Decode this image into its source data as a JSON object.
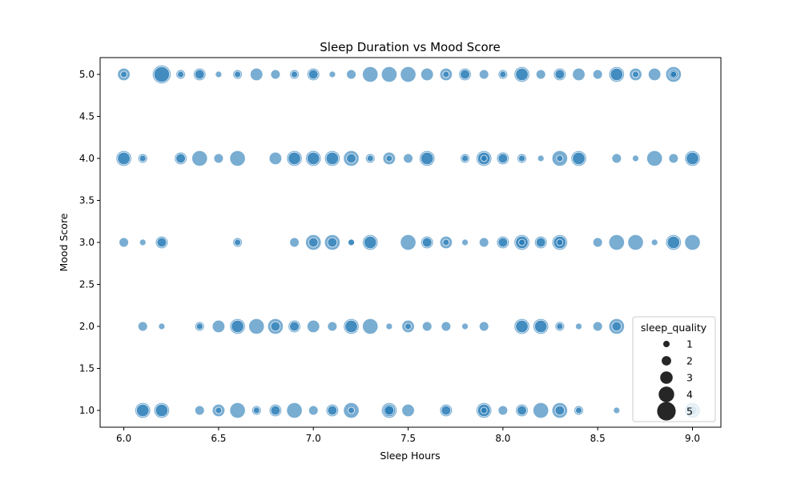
{
  "chart_data": {
    "type": "scatter",
    "title": "Sleep Duration vs Mood Score",
    "xlabel": "Sleep Hours",
    "ylabel": "Mood Score",
    "xlim": [
      5.875,
      9.15
    ],
    "ylim": [
      0.8,
      5.2
    ],
    "xticks": [
      "6.0",
      "6.5",
      "7.0",
      "7.5",
      "8.0",
      "8.5",
      "9.0"
    ],
    "yticks": [
      "1.0",
      "1.5",
      "2.0",
      "2.5",
      "3.0",
      "3.5",
      "4.0",
      "4.5",
      "5.0"
    ],
    "grid": false,
    "point_color": "#1f77b4",
    "point_alpha": 0.6,
    "size_variable": "sleep_quality",
    "legend": {
      "title": "sleep_quality",
      "placement": "lower-right",
      "entries": [
        "1",
        "2",
        "3",
        "4",
        "5"
      ]
    },
    "points": [
      {
        "x": 6.0,
        "y": 5,
        "q": 3
      },
      {
        "x": 6.0,
        "y": 5,
        "q": 1
      },
      {
        "x": 6.2,
        "y": 5,
        "q": 5
      },
      {
        "x": 6.2,
        "y": 5,
        "q": 4
      },
      {
        "x": 6.3,
        "y": 5,
        "q": 2
      },
      {
        "x": 6.3,
        "y": 5,
        "q": 1
      },
      {
        "x": 6.4,
        "y": 5,
        "q": 3
      },
      {
        "x": 6.4,
        "y": 5,
        "q": 2
      },
      {
        "x": 6.5,
        "y": 5,
        "q": 1
      },
      {
        "x": 6.6,
        "y": 5,
        "q": 2
      },
      {
        "x": 6.6,
        "y": 5,
        "q": 1
      },
      {
        "x": 6.7,
        "y": 5,
        "q": 3
      },
      {
        "x": 6.8,
        "y": 5,
        "q": 2
      },
      {
        "x": 6.9,
        "y": 5,
        "q": 2
      },
      {
        "x": 6.9,
        "y": 5,
        "q": 1
      },
      {
        "x": 7.0,
        "y": 5,
        "q": 3
      },
      {
        "x": 7.0,
        "y": 5,
        "q": 2
      },
      {
        "x": 7.1,
        "y": 5,
        "q": 1
      },
      {
        "x": 7.2,
        "y": 5,
        "q": 2
      },
      {
        "x": 7.3,
        "y": 5,
        "q": 4
      },
      {
        "x": 7.4,
        "y": 5,
        "q": 4
      },
      {
        "x": 7.5,
        "y": 5,
        "q": 4
      },
      {
        "x": 7.6,
        "y": 5,
        "q": 3
      },
      {
        "x": 7.7,
        "y": 5,
        "q": 3
      },
      {
        "x": 7.7,
        "y": 5,
        "q": 1
      },
      {
        "x": 7.8,
        "y": 5,
        "q": 3
      },
      {
        "x": 7.8,
        "y": 5,
        "q": 2
      },
      {
        "x": 7.9,
        "y": 5,
        "q": 2
      },
      {
        "x": 8.0,
        "y": 5,
        "q": 2
      },
      {
        "x": 8.0,
        "y": 5,
        "q": 1
      },
      {
        "x": 8.1,
        "y": 5,
        "q": 4
      },
      {
        "x": 8.1,
        "y": 5,
        "q": 3
      },
      {
        "x": 8.2,
        "y": 5,
        "q": 2
      },
      {
        "x": 8.3,
        "y": 5,
        "q": 3
      },
      {
        "x": 8.3,
        "y": 5,
        "q": 2
      },
      {
        "x": 8.4,
        "y": 5,
        "q": 3
      },
      {
        "x": 8.5,
        "y": 5,
        "q": 2
      },
      {
        "x": 8.6,
        "y": 5,
        "q": 4
      },
      {
        "x": 8.6,
        "y": 5,
        "q": 3
      },
      {
        "x": 8.7,
        "y": 5,
        "q": 3
      },
      {
        "x": 8.7,
        "y": 5,
        "q": 1
      },
      {
        "x": 8.8,
        "y": 5,
        "q": 3
      },
      {
        "x": 8.9,
        "y": 5,
        "q": 4
      },
      {
        "x": 8.9,
        "y": 5,
        "q": 2
      },
      {
        "x": 8.9,
        "y": 5,
        "q": 1
      },
      {
        "x": 6.0,
        "y": 4,
        "q": 4
      },
      {
        "x": 6.0,
        "y": 4,
        "q": 3
      },
      {
        "x": 6.1,
        "y": 4,
        "q": 2
      },
      {
        "x": 6.1,
        "y": 4,
        "q": 1
      },
      {
        "x": 6.3,
        "y": 4,
        "q": 3
      },
      {
        "x": 6.3,
        "y": 4,
        "q": 2
      },
      {
        "x": 6.4,
        "y": 4,
        "q": 4
      },
      {
        "x": 6.5,
        "y": 4,
        "q": 2
      },
      {
        "x": 6.6,
        "y": 4,
        "q": 4
      },
      {
        "x": 6.8,
        "y": 4,
        "q": 3
      },
      {
        "x": 6.9,
        "y": 4,
        "q": 4
      },
      {
        "x": 6.9,
        "y": 4,
        "q": 3
      },
      {
        "x": 7.0,
        "y": 4,
        "q": 4
      },
      {
        "x": 7.0,
        "y": 4,
        "q": 3
      },
      {
        "x": 7.1,
        "y": 4,
        "q": 4
      },
      {
        "x": 7.1,
        "y": 4,
        "q": 3
      },
      {
        "x": 7.2,
        "y": 4,
        "q": 4
      },
      {
        "x": 7.2,
        "y": 4,
        "q": 2
      },
      {
        "x": 7.3,
        "y": 4,
        "q": 2
      },
      {
        "x": 7.3,
        "y": 4,
        "q": 1
      },
      {
        "x": 7.4,
        "y": 4,
        "q": 3
      },
      {
        "x": 7.4,
        "y": 4,
        "q": 1
      },
      {
        "x": 7.5,
        "y": 4,
        "q": 2
      },
      {
        "x": 7.6,
        "y": 4,
        "q": 4
      },
      {
        "x": 7.6,
        "y": 4,
        "q": 3
      },
      {
        "x": 7.8,
        "y": 4,
        "q": 2
      },
      {
        "x": 7.8,
        "y": 4,
        "q": 1
      },
      {
        "x": 7.9,
        "y": 4,
        "q": 4
      },
      {
        "x": 7.9,
        "y": 4,
        "q": 3
      },
      {
        "x": 7.9,
        "y": 4,
        "q": 1
      },
      {
        "x": 8.0,
        "y": 4,
        "q": 3
      },
      {
        "x": 8.0,
        "y": 4,
        "q": 2
      },
      {
        "x": 8.1,
        "y": 4,
        "q": 2
      },
      {
        "x": 8.1,
        "y": 4,
        "q": 1
      },
      {
        "x": 8.2,
        "y": 4,
        "q": 1
      },
      {
        "x": 8.3,
        "y": 4,
        "q": 4
      },
      {
        "x": 8.3,
        "y": 4,
        "q": 1
      },
      {
        "x": 8.4,
        "y": 4,
        "q": 4
      },
      {
        "x": 8.4,
        "y": 4,
        "q": 3
      },
      {
        "x": 8.6,
        "y": 4,
        "q": 2
      },
      {
        "x": 8.7,
        "y": 4,
        "q": 1
      },
      {
        "x": 8.8,
        "y": 4,
        "q": 4
      },
      {
        "x": 8.9,
        "y": 4,
        "q": 2
      },
      {
        "x": 9.0,
        "y": 4,
        "q": 4
      },
      {
        "x": 9.0,
        "y": 4,
        "q": 3
      },
      {
        "x": 6.0,
        "y": 3,
        "q": 2
      },
      {
        "x": 6.1,
        "y": 3,
        "q": 1
      },
      {
        "x": 6.2,
        "y": 3,
        "q": 3
      },
      {
        "x": 6.2,
        "y": 3,
        "q": 2
      },
      {
        "x": 6.6,
        "y": 3,
        "q": 2
      },
      {
        "x": 6.6,
        "y": 3,
        "q": 1
      },
      {
        "x": 6.9,
        "y": 3,
        "q": 2
      },
      {
        "x": 7.0,
        "y": 3,
        "q": 4
      },
      {
        "x": 7.0,
        "y": 3,
        "q": 2
      },
      {
        "x": 7.1,
        "y": 3,
        "q": 4
      },
      {
        "x": 7.1,
        "y": 3,
        "q": 2
      },
      {
        "x": 7.2,
        "y": 3,
        "q": 1
      },
      {
        "x": 7.2,
        "y": 3,
        "q": 1
      },
      {
        "x": 7.3,
        "y": 3,
        "q": 4
      },
      {
        "x": 7.3,
        "y": 3,
        "q": 3
      },
      {
        "x": 7.5,
        "y": 3,
        "q": 4
      },
      {
        "x": 7.6,
        "y": 3,
        "q": 3
      },
      {
        "x": 7.6,
        "y": 3,
        "q": 2
      },
      {
        "x": 7.7,
        "y": 3,
        "q": 3
      },
      {
        "x": 7.7,
        "y": 3,
        "q": 1
      },
      {
        "x": 7.8,
        "y": 3,
        "q": 1
      },
      {
        "x": 7.9,
        "y": 3,
        "q": 2
      },
      {
        "x": 8.0,
        "y": 3,
        "q": 3
      },
      {
        "x": 8.0,
        "y": 3,
        "q": 2
      },
      {
        "x": 8.1,
        "y": 3,
        "q": 4
      },
      {
        "x": 8.1,
        "y": 3,
        "q": 3
      },
      {
        "x": 8.1,
        "y": 3,
        "q": 1
      },
      {
        "x": 8.2,
        "y": 3,
        "q": 3
      },
      {
        "x": 8.2,
        "y": 3,
        "q": 2
      },
      {
        "x": 8.3,
        "y": 3,
        "q": 4
      },
      {
        "x": 8.3,
        "y": 3,
        "q": 3
      },
      {
        "x": 8.3,
        "y": 3,
        "q": 1
      },
      {
        "x": 8.5,
        "y": 3,
        "q": 2
      },
      {
        "x": 8.6,
        "y": 3,
        "q": 4
      },
      {
        "x": 8.7,
        "y": 3,
        "q": 4
      },
      {
        "x": 8.8,
        "y": 3,
        "q": 1
      },
      {
        "x": 8.9,
        "y": 3,
        "q": 4
      },
      {
        "x": 8.9,
        "y": 3,
        "q": 3
      },
      {
        "x": 9.0,
        "y": 3,
        "q": 4
      },
      {
        "x": 6.1,
        "y": 2,
        "q": 2
      },
      {
        "x": 6.2,
        "y": 2,
        "q": 1
      },
      {
        "x": 6.4,
        "y": 2,
        "q": 2
      },
      {
        "x": 6.4,
        "y": 2,
        "q": 1
      },
      {
        "x": 6.5,
        "y": 2,
        "q": 3
      },
      {
        "x": 6.6,
        "y": 2,
        "q": 4
      },
      {
        "x": 6.6,
        "y": 2,
        "q": 3
      },
      {
        "x": 6.7,
        "y": 2,
        "q": 4
      },
      {
        "x": 6.8,
        "y": 2,
        "q": 4
      },
      {
        "x": 6.8,
        "y": 2,
        "q": 2
      },
      {
        "x": 6.9,
        "y": 2,
        "q": 3
      },
      {
        "x": 6.9,
        "y": 2,
        "q": 2
      },
      {
        "x": 7.0,
        "y": 2,
        "q": 3
      },
      {
        "x": 7.1,
        "y": 2,
        "q": 2
      },
      {
        "x": 7.2,
        "y": 2,
        "q": 4
      },
      {
        "x": 7.2,
        "y": 2,
        "q": 3
      },
      {
        "x": 7.3,
        "y": 2,
        "q": 4
      },
      {
        "x": 7.4,
        "y": 2,
        "q": 1
      },
      {
        "x": 7.5,
        "y": 2,
        "q": 3
      },
      {
        "x": 7.5,
        "y": 2,
        "q": 1
      },
      {
        "x": 7.6,
        "y": 2,
        "q": 2
      },
      {
        "x": 7.7,
        "y": 2,
        "q": 2
      },
      {
        "x": 7.8,
        "y": 2,
        "q": 1
      },
      {
        "x": 7.9,
        "y": 2,
        "q": 2
      },
      {
        "x": 8.1,
        "y": 2,
        "q": 4
      },
      {
        "x": 8.1,
        "y": 2,
        "q": 3
      },
      {
        "x": 8.2,
        "y": 2,
        "q": 4
      },
      {
        "x": 8.2,
        "y": 2,
        "q": 3
      },
      {
        "x": 8.3,
        "y": 2,
        "q": 2
      },
      {
        "x": 8.3,
        "y": 2,
        "q": 1
      },
      {
        "x": 8.4,
        "y": 2,
        "q": 1
      },
      {
        "x": 8.5,
        "y": 2,
        "q": 2
      },
      {
        "x": 8.6,
        "y": 2,
        "q": 4
      },
      {
        "x": 8.6,
        "y": 2,
        "q": 2
      },
      {
        "x": 6.1,
        "y": 1,
        "q": 4
      },
      {
        "x": 6.1,
        "y": 1,
        "q": 3
      },
      {
        "x": 6.2,
        "y": 1,
        "q": 4
      },
      {
        "x": 6.2,
        "y": 1,
        "q": 3
      },
      {
        "x": 6.4,
        "y": 1,
        "q": 2
      },
      {
        "x": 6.5,
        "y": 1,
        "q": 3
      },
      {
        "x": 6.5,
        "y": 1,
        "q": 1
      },
      {
        "x": 6.6,
        "y": 1,
        "q": 4
      },
      {
        "x": 6.7,
        "y": 1,
        "q": 2
      },
      {
        "x": 6.7,
        "y": 1,
        "q": 1
      },
      {
        "x": 6.8,
        "y": 1,
        "q": 3
      },
      {
        "x": 6.8,
        "y": 1,
        "q": 2
      },
      {
        "x": 6.9,
        "y": 1,
        "q": 4
      },
      {
        "x": 7.0,
        "y": 1,
        "q": 2
      },
      {
        "x": 7.1,
        "y": 1,
        "q": 3
      },
      {
        "x": 7.1,
        "y": 1,
        "q": 2
      },
      {
        "x": 7.2,
        "y": 1,
        "q": 4
      },
      {
        "x": 7.2,
        "y": 1,
        "q": 1
      },
      {
        "x": 7.4,
        "y": 1,
        "q": 4
      },
      {
        "x": 7.4,
        "y": 1,
        "q": 3
      },
      {
        "x": 7.4,
        "y": 1,
        "q": 2
      },
      {
        "x": 7.5,
        "y": 1,
        "q": 3
      },
      {
        "x": 7.7,
        "y": 1,
        "q": 3
      },
      {
        "x": 7.7,
        "y": 1,
        "q": 2
      },
      {
        "x": 7.9,
        "y": 1,
        "q": 4
      },
      {
        "x": 7.9,
        "y": 1,
        "q": 3
      },
      {
        "x": 7.9,
        "y": 1,
        "q": 1
      },
      {
        "x": 8.0,
        "y": 1,
        "q": 2
      },
      {
        "x": 8.1,
        "y": 1,
        "q": 3
      },
      {
        "x": 8.1,
        "y": 1,
        "q": 2
      },
      {
        "x": 8.2,
        "y": 1,
        "q": 4
      },
      {
        "x": 8.3,
        "y": 1,
        "q": 4
      },
      {
        "x": 8.3,
        "y": 1,
        "q": 2
      },
      {
        "x": 8.4,
        "y": 1,
        "q": 2
      },
      {
        "x": 8.4,
        "y": 1,
        "q": 1
      },
      {
        "x": 8.6,
        "y": 1,
        "q": 1
      },
      {
        "x": 9.0,
        "y": 1,
        "q": 4
      },
      {
        "x": 9.0,
        "y": 1,
        "q": 2
      }
    ]
  }
}
